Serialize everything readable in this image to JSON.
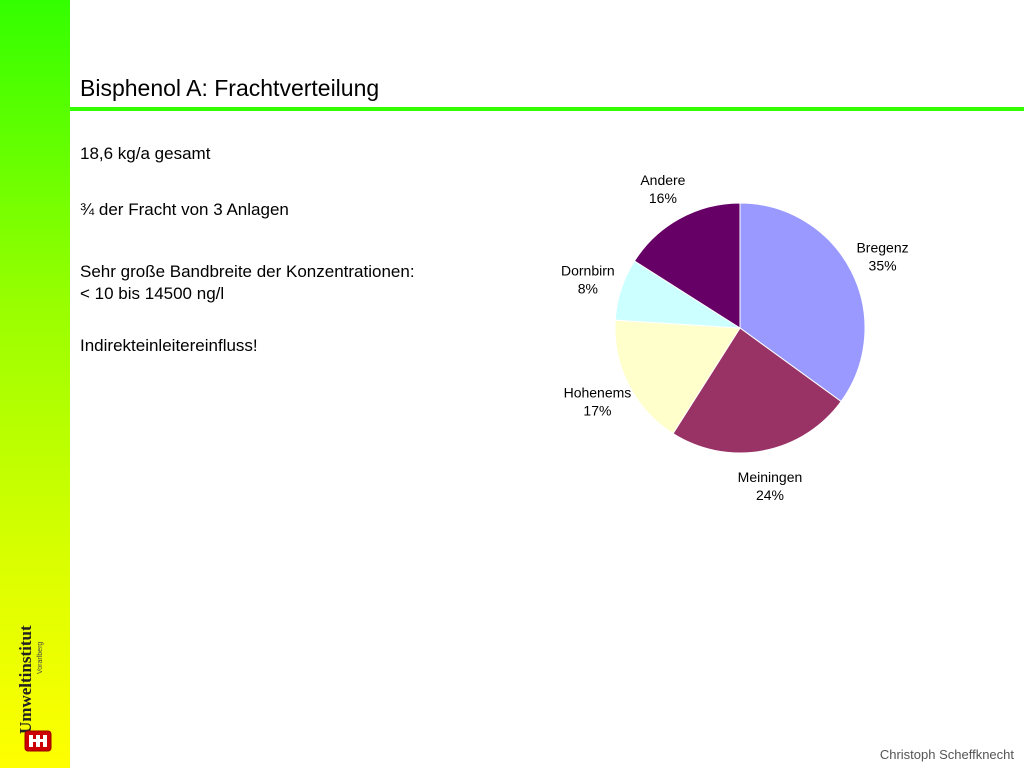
{
  "slide": {
    "title": "Bisphenol A: Frachtverteilung",
    "bullets": [
      "18,6 kg/a gesamt",
      "¾ der Fracht von 3 Anlagen",
      "Sehr große Bandbreite der Konzentrationen:",
      "< 10 bis 14500 ng/l",
      "Indirekteinleitereinfluss!"
    ],
    "footer": "Christoph Scheffknecht"
  },
  "logo": {
    "main_text": "Umweltinstitut",
    "sub_text": "Vorarlberg"
  },
  "colors": {
    "sidebar_top": "#33ff00",
    "sidebar_bottom": "#ffff00",
    "title_rule": "#33ff00"
  },
  "chart_data": {
    "type": "pie",
    "title": "",
    "start_angle_deg": 0,
    "direction": "clockwise",
    "slices": [
      {
        "label": "Bregenz",
        "value": 35,
        "percent_label": "35%",
        "color": "#9999ff"
      },
      {
        "label": "Meiningen",
        "value": 24,
        "percent_label": "24%",
        "color": "#993366"
      },
      {
        "label": "Hohenems",
        "value": 17,
        "percent_label": "17%",
        "color": "#ffffcc"
      },
      {
        "label": "Dornbirn",
        "value": 8,
        "percent_label": "8%",
        "color": "#ccffff"
      },
      {
        "label": "Andere",
        "value": 16,
        "percent_label": "16%",
        "color": "#660066"
      }
    ]
  }
}
